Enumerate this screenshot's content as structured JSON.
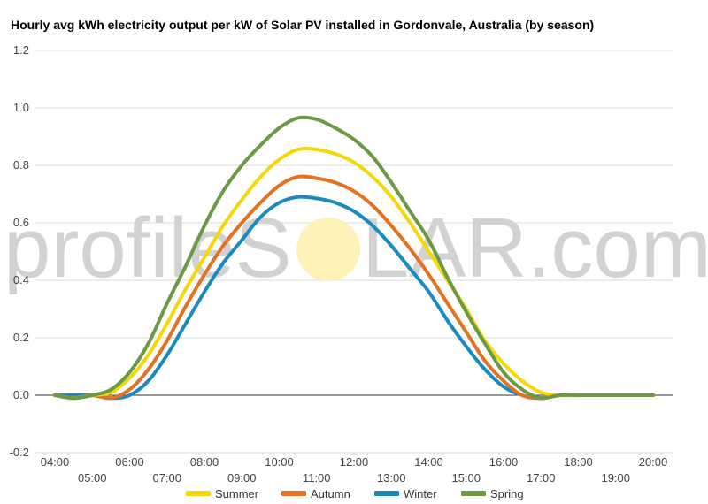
{
  "watermark": {
    "left": "profileS",
    "right": "LAR.com"
  },
  "chart_data": {
    "type": "line",
    "title": "Hourly avg kWh electricity output per kW of Solar PV installed in Gordonvale, Australia (by season)",
    "xlabel": "",
    "ylabel": "",
    "x": [
      "04:00",
      "04:30",
      "05:00",
      "05:30",
      "06:00",
      "06:30",
      "07:00",
      "07:30",
      "08:00",
      "08:30",
      "09:00",
      "09:30",
      "10:00",
      "10:30",
      "11:00",
      "11:30",
      "12:00",
      "12:30",
      "13:00",
      "13:30",
      "14:00",
      "14:30",
      "15:00",
      "15:30",
      "16:00",
      "16:30",
      "17:00",
      "17:30",
      "18:00",
      "18:30",
      "19:00",
      "19:30",
      "20:00"
    ],
    "x_ticks_upper": [
      "04:00",
      "06:00",
      "08:00",
      "10:00",
      "12:00",
      "14:00",
      "16:00",
      "18:00",
      "20:00"
    ],
    "x_ticks_lower": [
      "05:00",
      "07:00",
      "09:00",
      "11:00",
      "13:00",
      "15:00",
      "17:00",
      "19:00"
    ],
    "ylim": [
      -0.2,
      1.2
    ],
    "y_ticks": [
      "1.2",
      "1.0",
      "0.8",
      "0.6",
      "0.4",
      "0.2",
      "0.0",
      "-0.2"
    ],
    "grid": true,
    "legend": "bottom",
    "series": [
      {
        "name": "Summer",
        "color": "#f5d70a",
        "values": [
          0.0,
          -0.01,
          0.0,
          0.01,
          0.06,
          0.14,
          0.25,
          0.37,
          0.48,
          0.59,
          0.68,
          0.76,
          0.82,
          0.855,
          0.855,
          0.84,
          0.81,
          0.76,
          0.69,
          0.6,
          0.5,
          0.4,
          0.3,
          0.19,
          0.11,
          0.05,
          0.01,
          0.0,
          0.0,
          0.0,
          0.0,
          0.0,
          0.0
        ]
      },
      {
        "name": "Autumn",
        "color": "#e37222",
        "values": [
          0.0,
          -0.01,
          0.0,
          -0.01,
          0.02,
          0.09,
          0.19,
          0.31,
          0.42,
          0.52,
          0.6,
          0.67,
          0.73,
          0.76,
          0.755,
          0.74,
          0.71,
          0.66,
          0.59,
          0.51,
          0.42,
          0.32,
          0.22,
          0.12,
          0.05,
          0.0,
          -0.01,
          0.0,
          0.0,
          0.0,
          0.0,
          0.0,
          0.0
        ]
      },
      {
        "name": "Winter",
        "color": "#1b8bbf",
        "values": [
          0.0,
          0.0,
          0.0,
          -0.01,
          0.0,
          0.05,
          0.14,
          0.25,
          0.36,
          0.46,
          0.54,
          0.62,
          0.67,
          0.69,
          0.685,
          0.67,
          0.64,
          0.59,
          0.52,
          0.44,
          0.36,
          0.26,
          0.17,
          0.09,
          0.03,
          0.0,
          -0.01,
          0.0,
          0.0,
          0.0,
          0.0,
          0.0,
          0.0
        ]
      },
      {
        "name": "Spring",
        "color": "#6a9a46",
        "values": [
          0.0,
          -0.01,
          0.0,
          0.02,
          0.08,
          0.18,
          0.32,
          0.45,
          0.59,
          0.71,
          0.8,
          0.87,
          0.93,
          0.965,
          0.96,
          0.93,
          0.89,
          0.83,
          0.74,
          0.64,
          0.54,
          0.41,
          0.29,
          0.18,
          0.08,
          0.02,
          -0.01,
          0.0,
          0.0,
          0.0,
          0.0,
          0.0,
          0.0
        ]
      }
    ]
  }
}
